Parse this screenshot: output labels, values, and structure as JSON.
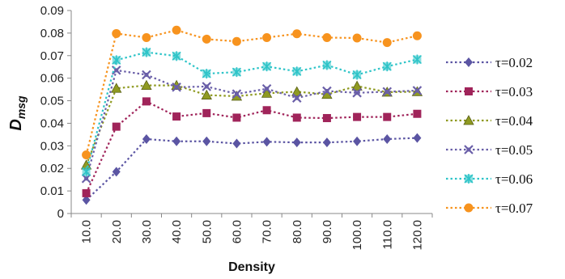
{
  "chart_data": {
    "type": "line",
    "xlabel": "Density",
    "ylabel_main": "D",
    "ylabel_sub": "msg",
    "ylim": [
      0,
      0.09
    ],
    "yticks": [
      "0",
      "0.01",
      "0.02",
      "0.03",
      "0.04",
      "0.05",
      "0.06",
      "0.07",
      "0.08",
      "0.09"
    ],
    "grid": false,
    "legend_position": "right",
    "categories": [
      "10.0",
      "20.0",
      "30.0",
      "40.0",
      "50.0",
      "60.0",
      "70.0",
      "80.0",
      "90.0",
      "100.0",
      "110.0",
      "120.0"
    ],
    "series": [
      {
        "name": "τ=0.02",
        "color": "#5b55a3",
        "marker": "diamond",
        "values": [
          0.006,
          0.0185,
          0.033,
          0.032,
          0.032,
          0.031,
          0.0318,
          0.0315,
          0.0315,
          0.032,
          0.033,
          0.0335
        ]
      },
      {
        "name": "τ=0.03",
        "color": "#a0245a",
        "marker": "square",
        "values": [
          0.009,
          0.0385,
          0.0497,
          0.043,
          0.0445,
          0.0425,
          0.0458,
          0.0425,
          0.0423,
          0.0428,
          0.0428,
          0.0442
        ]
      },
      {
        "name": "τ=0.04",
        "color": "#8f9a21",
        "marker": "triangle",
        "values": [
          0.0215,
          0.0555,
          0.0568,
          0.0568,
          0.0525,
          0.052,
          0.0533,
          0.054,
          0.0528,
          0.0565,
          0.0538,
          0.054
        ]
      },
      {
        "name": "τ=0.05",
        "color": "#6a5fa8",
        "marker": "star",
        "values": [
          0.0155,
          0.0635,
          0.0615,
          0.056,
          0.0563,
          0.053,
          0.0553,
          0.0512,
          0.0543,
          0.0535,
          0.054,
          0.0545
        ]
      },
      {
        "name": "τ=0.06",
        "color": "#2ec4c8",
        "marker": "asterisk",
        "values": [
          0.0185,
          0.068,
          0.0715,
          0.0698,
          0.062,
          0.0627,
          0.0652,
          0.063,
          0.0658,
          0.0615,
          0.0652,
          0.0683
        ]
      },
      {
        "name": "τ=0.07",
        "color": "#f7931e",
        "marker": "circle",
        "values": [
          0.026,
          0.0798,
          0.078,
          0.0813,
          0.0773,
          0.0763,
          0.078,
          0.0797,
          0.078,
          0.0778,
          0.0758,
          0.0788
        ]
      }
    ]
  }
}
